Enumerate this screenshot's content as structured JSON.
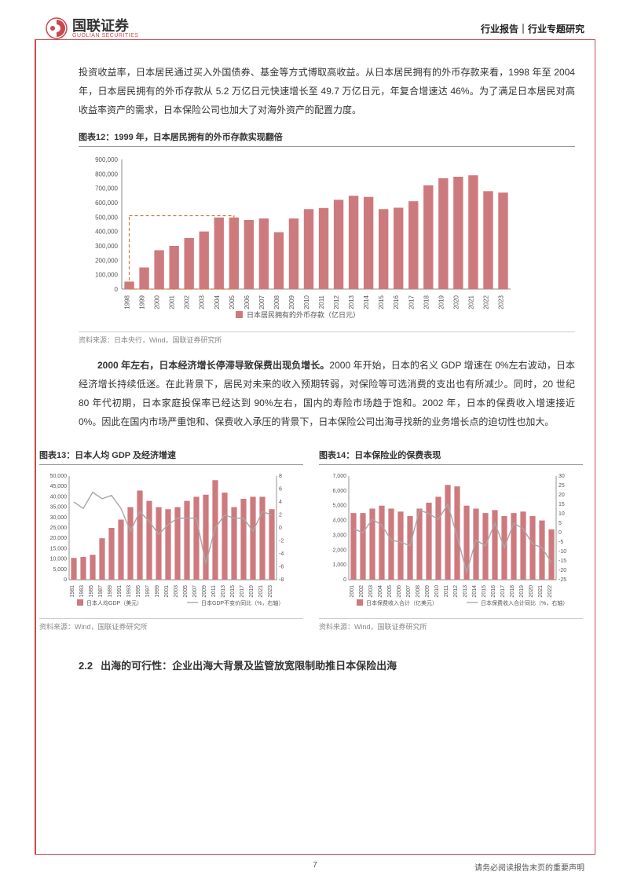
{
  "header": {
    "logo_cn": "国联证券",
    "logo_en": "GUOLIAN SECURITIES",
    "right": "行业报告｜行业专题研究"
  },
  "para1": "投资收益率，日本居民通过买入外国债券、基金等方式博取高收益。从日本居民拥有的外币存款来看，1998 年至 2004 年，日本居民拥有的外币存款从 5.2 万亿日元快速增长至 49.7 万亿日元，年复合增速达 46%。为了满足日本居民对高收益率资产的需求，日本保险公司也加大了对海外资产的配置力度。",
  "fig12": {
    "title": "图表12：1999 年，日本居民拥有的外币存款实现翻倍",
    "source": "资料来源：日本央行，Wind，国联证券研究所",
    "chart": {
      "type": "bar",
      "legend": "日本居民拥有的外币存款（亿日元）",
      "categories": [
        "1998",
        "1999",
        "2000",
        "2001",
        "2002",
        "2003",
        "2004",
        "2005",
        "2006",
        "2007",
        "2008",
        "2009",
        "2010",
        "2011",
        "2012",
        "2013",
        "2014",
        "2015",
        "2016",
        "2017",
        "2018",
        "2019",
        "2020",
        "2021",
        "2022",
        "2023"
      ],
      "values": [
        52000,
        150000,
        270000,
        300000,
        355000,
        400000,
        497000,
        497000,
        480000,
        490000,
        395000,
        490000,
        555000,
        563000,
        620000,
        648000,
        640000,
        555000,
        565000,
        610000,
        720000,
        770000,
        780000,
        790000,
        680000,
        670000
      ],
      "ylim": [
        0,
        900000
      ],
      "ytick_step": 100000,
      "bar_color": "#cd7a7e",
      "axis_color": "#666666",
      "label_fontsize": 8,
      "highlight_box": {
        "x_from": 0.5,
        "x_to": 7.5,
        "y": 510000,
        "color": "#d87a3a"
      },
      "bg": "#ffffff"
    }
  },
  "para2a": "2000 年左右，日本经济增长停滞导致保费出现负增长。",
  "para2b": "2000 年开始，日本的名义 GDP 增速在 0%左右波动，日本经济增长持续低迷。在此背景下，居民对未来的收入预期转弱，对保险等可选消费的支出也有所减少。同时，20 世纪 80 年代初期，日本家庭投保率已经达到 90%左右，国内的寿险市场趋于饱和。2002 年，日本的保费收入增速接近 0%。因此在国内市场严重饱和、保费收入承压的背景下，日本保险公司出海寻找新的业务增长点的迫切性也加大。",
  "fig13": {
    "title": "图表13：日本人均 GDP 及经济增速",
    "source": "资料来源：Wind，国联证券研究所",
    "chart": {
      "type": "bar+line",
      "legend_bar": "日本人均GDP（美元）",
      "legend_line": "日本GDP不变价同比（%，右轴）",
      "categories": [
        "1981",
        "1983",
        "1985",
        "1987",
        "1989",
        "1991",
        "1993",
        "1995",
        "1997",
        "1999",
        "2001",
        "2003",
        "2005",
        "2007",
        "2009",
        "2011",
        "2013",
        "2015",
        "2017",
        "2019",
        "2021",
        "2023"
      ],
      "bar_values": [
        10500,
        11000,
        12000,
        20000,
        25000,
        29000,
        35000,
        43000,
        38000,
        35000,
        34000,
        35000,
        38000,
        40000,
        41000,
        48000,
        42000,
        35000,
        39000,
        40000,
        40000,
        34000
      ],
      "line_values": [
        4.0,
        3.0,
        5.5,
        4.5,
        5.0,
        3.0,
        -0.5,
        2.5,
        1.0,
        -1.0,
        0.5,
        1.5,
        1.5,
        1.5,
        -5.5,
        0.0,
        2.0,
        1.5,
        1.5,
        -0.5,
        2.5,
        2.0
      ],
      "ylim_left": [
        0,
        50000
      ],
      "ytick_left": 5000,
      "ylim_right": [
        -8,
        8
      ],
      "ytick_right": 2,
      "bar_color": "#cd7a7e",
      "line_color": "#a7a7a7",
      "axis_color": "#666666",
      "label_fontsize": 7
    }
  },
  "fig14": {
    "title": "图表14：日本保险业的保费表现",
    "source": "资料来源：Wind，国联证券研究所",
    "chart": {
      "type": "bar+line",
      "legend_bar": "日本保费收入合计（亿美元）",
      "legend_line": "日本保费收入合计同比（%，右轴）",
      "categories": [
        "2001",
        "2002",
        "2003",
        "2004",
        "2005",
        "2006",
        "2007",
        "2008",
        "2009",
        "2010",
        "2011",
        "2012",
        "2013",
        "2014",
        "2015",
        "2016",
        "2017",
        "2018",
        "2019",
        "2020",
        "2021",
        "2022"
      ],
      "bar_values": [
        4500,
        4500,
        4800,
        5000,
        4800,
        4600,
        4300,
        4800,
        5200,
        5600,
        6400,
        6300,
        5000,
        4800,
        4500,
        4700,
        4300,
        4500,
        4600,
        4300,
        4000,
        3400
      ],
      "line_values": [
        2,
        0,
        7,
        4,
        -4,
        -5,
        -7,
        12,
        10,
        7,
        15,
        -2,
        -21,
        -4,
        -7,
        5,
        -8,
        5,
        2,
        -6,
        -8,
        -16
      ],
      "ylim_left": [
        0,
        7000
      ],
      "ytick_left": 1000,
      "ylim_right": [
        -25,
        30
      ],
      "ytick_right": 5,
      "bar_color": "#cd7a7e",
      "line_color": "#a7a7a7",
      "axis_color": "#666666",
      "label_fontsize": 7
    }
  },
  "section22": {
    "num": "2.2",
    "title": "出海的可行性：企业出海大背景及监管放宽限制助推日本保险出海"
  },
  "footer": {
    "page": "7",
    "notice": "请务必阅读报告末页的重要声明"
  }
}
